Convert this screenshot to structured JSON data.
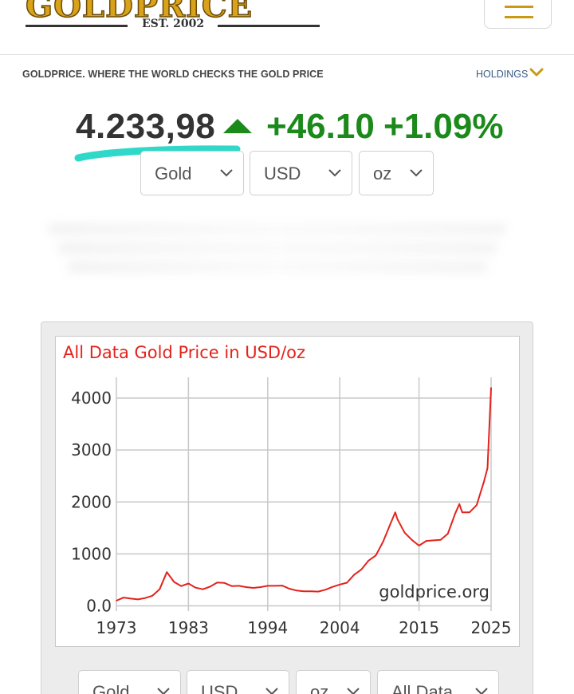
{
  "header": {
    "logo_text": "GOLDPRICE",
    "logo_est": "EST. 2002",
    "menu_icon": "hamburger-icon"
  },
  "tagline": "GOLDPRICE. WHERE THE WORLD CHECKS THE GOLD PRICE",
  "holdings": {
    "label": "HOLDINGS",
    "icon": "chevron-down-icon"
  },
  "quote": {
    "price": "4.233,98",
    "direction_icon": "triangle-up-icon",
    "change": "+46.10",
    "change_pct": "+1.09%"
  },
  "selectors": {
    "metal": "Gold",
    "currency": "USD",
    "unit": "oz"
  },
  "bottom_selectors": {
    "metal": "Gold",
    "currency": "USD",
    "unit": "oz",
    "range": "All Data"
  },
  "colors": {
    "gold_accent": "#c99a12",
    "positive": "#1b8a1b",
    "chart_line": "#e3231d",
    "highlight_underline": "#2fd8c8"
  },
  "chart_data": {
    "type": "line",
    "title": "All Data Gold Price in USD/oz",
    "watermark": "goldprice.org",
    "xlabel": "",
    "ylabel": "",
    "x_ticks": [
      "1973",
      "1983",
      "1994",
      "2004",
      "2015",
      "2025"
    ],
    "y_ticks": [
      "0.0",
      "1000",
      "2000",
      "3000",
      "4000"
    ],
    "xlim": [
      1973,
      2025
    ],
    "ylim": [
      -100,
      4400
    ],
    "grid": true,
    "series": [
      {
        "x": [
          1973,
          1974,
          1975,
          1976,
          1977,
          1978,
          1979,
          1980,
          1981,
          1982,
          1983,
          1984,
          1985,
          1986,
          1987,
          1988,
          1989,
          1990,
          1991,
          1992,
          1993,
          1994,
          1995,
          1996,
          1997,
          1998,
          1999,
          2000,
          2001,
          2002,
          2003,
          2004,
          2005,
          2006,
          2007,
          2008,
          2009,
          2010,
          2011,
          2011.7,
          2012,
          2013,
          2014,
          2015,
          2016,
          2017,
          2018,
          2019,
          2020,
          2020.6,
          2021,
          2022,
          2023,
          2024,
          2024.5,
          2025
        ],
        "y": [
          100,
          160,
          140,
          125,
          150,
          195,
          320,
          650,
          460,
          380,
          430,
          350,
          320,
          370,
          450,
          440,
          380,
          385,
          360,
          345,
          360,
          385,
          385,
          390,
          330,
          295,
          280,
          280,
          275,
          310,
          365,
          410,
          445,
          600,
          700,
          870,
          970,
          1230,
          1570,
          1800,
          1670,
          1410,
          1270,
          1160,
          1250,
          1260,
          1270,
          1390,
          1770,
          1960,
          1800,
          1800,
          1940,
          2390,
          2650,
          4200
        ]
      }
    ]
  }
}
